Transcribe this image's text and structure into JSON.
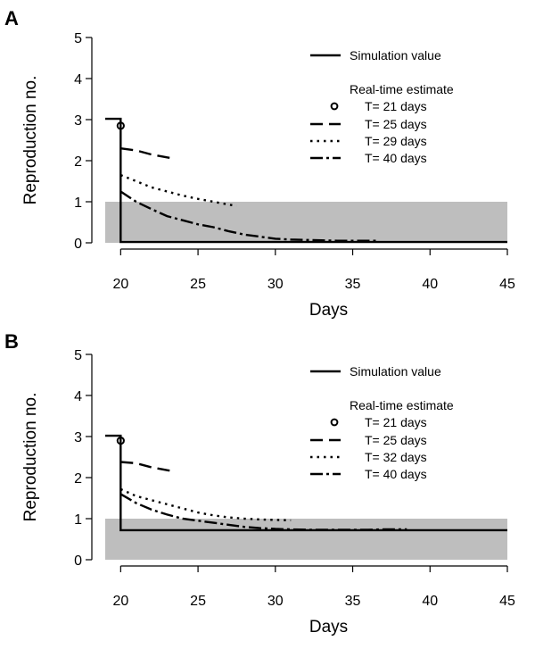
{
  "chart_data": [
    {
      "type": "line",
      "panel_label": "A",
      "xlabel": "Days",
      "ylabel": "Reproduction no.",
      "xlim": [
        19,
        45
      ],
      "ylim": [
        0,
        5
      ],
      "xticks": [
        "20",
        "25",
        "30",
        "35",
        "40",
        "45"
      ],
      "yticks": [
        "0",
        "1",
        "2",
        "3",
        "4",
        "5"
      ],
      "shaded_band": {
        "from": 0,
        "to": 1,
        "color": "#bebebe"
      },
      "legend_placement": "top-right",
      "legend_heading": "Real-time estimate",
      "series": [
        {
          "name": "Simulation value",
          "style": "solid",
          "points": [
            [
              19,
              3.02
            ],
            [
              20,
              3.02
            ],
            [
              20,
              0.02
            ],
            [
              45,
              0.02
            ]
          ]
        },
        {
          "name": "T= 21 days",
          "style": "circle",
          "points": [
            [
              20,
              2.85
            ]
          ]
        },
        {
          "name": "T= 25 days",
          "style": "longdash",
          "points": [
            [
              20,
              2.3
            ],
            [
              21,
              2.25
            ],
            [
              22,
              2.15
            ],
            [
              23,
              2.08
            ],
            [
              23.5,
              2.05
            ]
          ]
        },
        {
          "name": "T= 29 days",
          "style": "dotted",
          "points": [
            [
              20,
              1.65
            ],
            [
              21,
              1.5
            ],
            [
              22,
              1.35
            ],
            [
              23,
              1.25
            ],
            [
              24,
              1.15
            ],
            [
              25,
              1.07
            ],
            [
              26,
              1.0
            ],
            [
              27,
              0.93
            ],
            [
              27.5,
              0.9
            ]
          ]
        },
        {
          "name": "T= 40 days",
          "style": "dashdot",
          "points": [
            [
              20,
              1.25
            ],
            [
              21,
              1.0
            ],
            [
              22,
              0.82
            ],
            [
              23,
              0.65
            ],
            [
              24,
              0.55
            ],
            [
              25,
              0.45
            ],
            [
              26,
              0.38
            ],
            [
              27,
              0.28
            ],
            [
              28,
              0.2
            ],
            [
              29,
              0.15
            ],
            [
              30,
              0.1
            ],
            [
              31,
              0.08
            ],
            [
              32,
              0.07
            ],
            [
              33,
              0.06
            ],
            [
              34,
              0.05
            ],
            [
              35,
              0.05
            ],
            [
              36,
              0.05
            ],
            [
              36.5,
              0.05
            ]
          ]
        }
      ]
    },
    {
      "type": "line",
      "panel_label": "B",
      "xlabel": "Days",
      "ylabel": "Reproduction no.",
      "xlim": [
        19,
        45
      ],
      "ylim": [
        0,
        5
      ],
      "xticks": [
        "20",
        "25",
        "30",
        "35",
        "40",
        "45"
      ],
      "yticks": [
        "0",
        "1",
        "2",
        "3",
        "4",
        "5"
      ],
      "shaded_band": {
        "from": 0,
        "to": 1,
        "color": "#bebebe"
      },
      "legend_placement": "top-right",
      "legend_heading": "Real-time estimate",
      "series": [
        {
          "name": "Simulation value",
          "style": "solid",
          "points": [
            [
              19,
              3.02
            ],
            [
              20,
              3.02
            ],
            [
              20,
              0.72
            ],
            [
              45,
              0.72
            ]
          ]
        },
        {
          "name": "T= 21 days",
          "style": "circle",
          "points": [
            [
              20,
              2.9
            ]
          ]
        },
        {
          "name": "T= 25 days",
          "style": "longdash",
          "points": [
            [
              20,
              2.38
            ],
            [
              21,
              2.35
            ],
            [
              22,
              2.25
            ],
            [
              23,
              2.18
            ],
            [
              23.5,
              2.15
            ]
          ]
        },
        {
          "name": "T= 32 days",
          "style": "dotted",
          "points": [
            [
              20,
              1.72
            ],
            [
              21,
              1.55
            ],
            [
              22,
              1.45
            ],
            [
              23,
              1.35
            ],
            [
              24,
              1.25
            ],
            [
              25,
              1.15
            ],
            [
              26,
              1.08
            ],
            [
              27,
              1.03
            ],
            [
              28,
              1.0
            ],
            [
              29,
              0.98
            ],
            [
              30,
              0.97
            ],
            [
              31,
              0.96
            ]
          ]
        },
        {
          "name": "T= 40 days",
          "style": "dashdot",
          "points": [
            [
              20,
              1.6
            ],
            [
              21,
              1.38
            ],
            [
              22,
              1.22
            ],
            [
              23,
              1.1
            ],
            [
              24,
              1.0
            ],
            [
              25,
              0.95
            ],
            [
              26,
              0.9
            ],
            [
              27,
              0.85
            ],
            [
              28,
              0.8
            ],
            [
              29,
              0.77
            ],
            [
              30,
              0.75
            ],
            [
              31,
              0.74
            ],
            [
              32,
              0.73
            ],
            [
              33,
              0.73
            ],
            [
              34,
              0.73
            ],
            [
              35,
              0.73
            ],
            [
              36,
              0.73
            ],
            [
              37,
              0.74
            ],
            [
              38,
              0.74
            ],
            [
              38.5,
              0.74
            ]
          ]
        }
      ]
    }
  ]
}
